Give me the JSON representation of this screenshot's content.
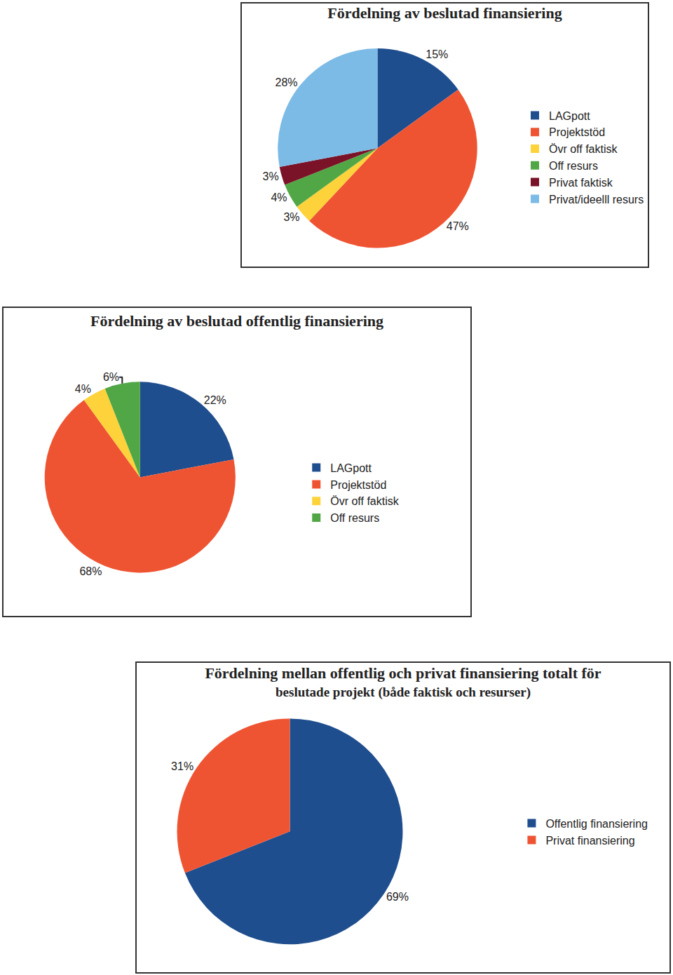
{
  "chart_data": [
    {
      "type": "pie",
      "title": "Fördelning av beslutad finansiering",
      "categories": [
        "LAGpott",
        "Projektstöd",
        "Övr off faktisk",
        "Off resurs",
        "Privat faktisk",
        "Privat/ideelll resurs"
      ],
      "values": [
        15,
        47,
        3,
        4,
        3,
        28
      ],
      "value_labels": [
        "15%",
        "47%",
        "3%",
        "4%",
        "3%",
        "28%"
      ],
      "colors": [
        "#1f4e8f",
        "#ef5432",
        "#fdd23a",
        "#51a745",
        "#7a1328",
        "#7cbbe6"
      ],
      "data_labels": true,
      "legend": "right"
    },
    {
      "type": "pie",
      "title": "Fördelning av beslutad offentlig finansiering",
      "categories": [
        "LAGpott",
        "Projektstöd",
        "Övr off faktisk",
        "Off resurs"
      ],
      "values": [
        22,
        68,
        4,
        6
      ],
      "value_labels": [
        "22%",
        "68%",
        "4%",
        "6%"
      ],
      "colors": [
        "#1f4e8f",
        "#ef5432",
        "#fdd23a",
        "#51a745"
      ],
      "data_labels": true,
      "legend": "right"
    },
    {
      "type": "pie",
      "title": "Fördelning mellan offentlig och privat finansiering totalt för",
      "subtitle": "beslutade projekt (både faktisk och resurser)",
      "categories": [
        "Offentlig finansiering",
        "Privat finansiering"
      ],
      "values": [
        69,
        31
      ],
      "value_labels": [
        "69%",
        "31%"
      ],
      "colors": [
        "#1f4e8f",
        "#ef5432"
      ],
      "data_labels": true,
      "legend": "right"
    }
  ]
}
